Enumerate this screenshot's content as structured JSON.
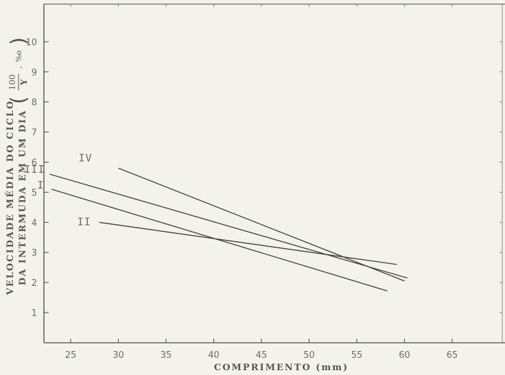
{
  "chart_data": {
    "type": "line",
    "title": "",
    "xlabel": "COMPRIMENTO (mm)",
    "ylabel_line1": "VELOCIDADE MÉDIA DO CICLO",
    "ylabel_line2": "DA INTERMUDA EM UM DIA",
    "ylabel_unit": {
      "numerator": "100",
      "denominator": "Y",
      "suffix": "%o"
    },
    "xlim": [
      20,
      70
    ],
    "ylim": [
      0,
      11
    ],
    "xticks": [
      25,
      30,
      35,
      40,
      45,
      50,
      55,
      60,
      65
    ],
    "yticks": [
      1,
      2,
      3,
      4,
      5,
      6,
      7,
      8,
      9,
      10
    ],
    "grid": false,
    "series": [
      {
        "name": "IV",
        "x": [
          30,
          60
        ],
        "y": [
          5.8,
          2.05
        ]
      },
      {
        "name": "III",
        "x": [
          22.8,
          60.3
        ],
        "y": [
          5.6,
          2.15
        ]
      },
      {
        "name": "I",
        "x": [
          23,
          58.2
        ],
        "y": [
          5.1,
          1.72
        ]
      },
      {
        "name": "II",
        "x": [
          28,
          59.2
        ],
        "y": [
          4.0,
          2.6
        ]
      }
    ]
  }
}
